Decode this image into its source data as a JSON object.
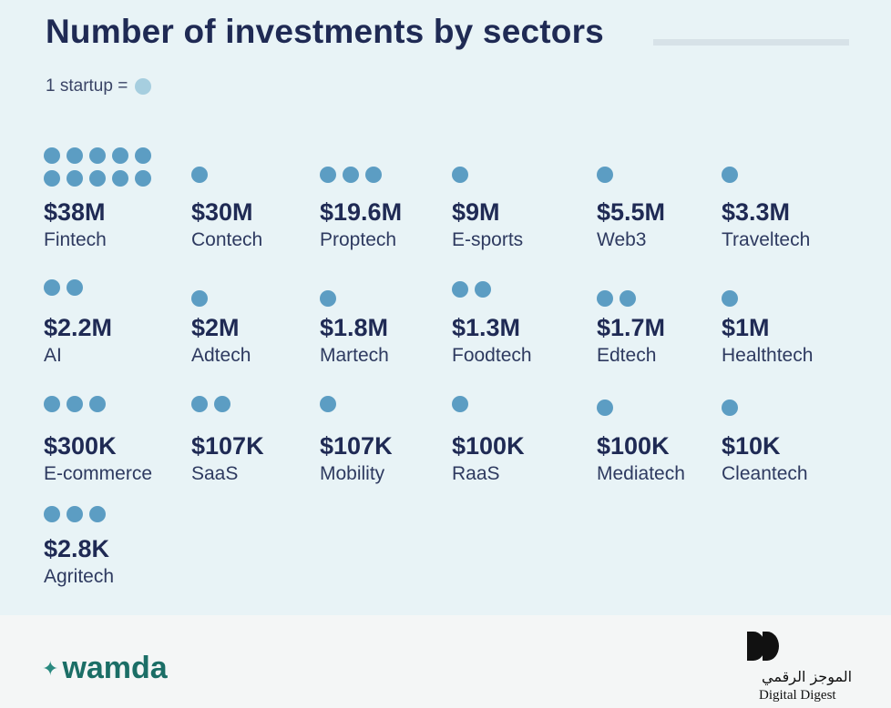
{
  "chart_data": {
    "type": "pictogram",
    "title": "Number of investments by sectors",
    "legend": {
      "label": "1 startup =",
      "dot_color": "#a6cedf"
    },
    "dot_color": "#5c9dc3",
    "sectors": [
      {
        "name": "Fintech",
        "amount": "$38M",
        "startups": 10
      },
      {
        "name": "Contech",
        "amount": "$30M",
        "startups": 1
      },
      {
        "name": "Proptech",
        "amount": "$19.6M",
        "startups": 3
      },
      {
        "name": "E-sports",
        "amount": "$9M",
        "startups": 1
      },
      {
        "name": "Web3",
        "amount": "$5.5M",
        "startups": 1
      },
      {
        "name": "Traveltech",
        "amount": "$3.3M",
        "startups": 1
      },
      {
        "name": "AI",
        "amount": "$2.2M",
        "startups": 2
      },
      {
        "name": "Adtech",
        "amount": "$2M",
        "startups": 1
      },
      {
        "name": "Martech",
        "amount": "$1.8M",
        "startups": 1
      },
      {
        "name": "Foodtech",
        "amount": "$1.3M",
        "startups": 2
      },
      {
        "name": "Edtech",
        "amount": "$1.7M",
        "startups": 2
      },
      {
        "name": "Healthtech",
        "amount": "$1M",
        "startups": 1
      },
      {
        "name": "E-commerce",
        "amount": "$300K",
        "startups": 3
      },
      {
        "name": "SaaS",
        "amount": "$107K",
        "startups": 2
      },
      {
        "name": "Mobility",
        "amount": "$107K",
        "startups": 1
      },
      {
        "name": "RaaS",
        "amount": "$100K",
        "startups": 1
      },
      {
        "name": "Mediatech",
        "amount": "$100K",
        "startups": 1
      },
      {
        "name": "Cleantech",
        "amount": "$10K",
        "startups": 1
      },
      {
        "name": "Agritech",
        "amount": "$2.8K",
        "startups": 3
      }
    ]
  },
  "footer": {
    "brand": "wamda",
    "brand_mark": "✦",
    "partner_arabic": "الموجز الرقمي",
    "partner_english": "Digital Digest"
  }
}
